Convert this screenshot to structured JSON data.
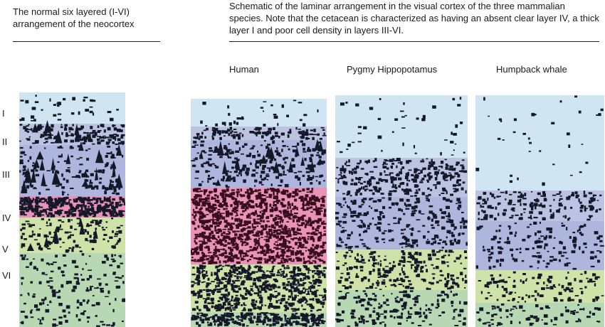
{
  "captions": {
    "left": "The normal six layered (I-VI) arrangement of the  neocortex",
    "right": "Schematic of the laminar arrangement in the visual cortex of the three mammalian species. Note that the cetacean is characterized as having an absent clear layer IV, a thick layer I and poor cell density in layers III-VI."
  },
  "species": [
    "Human",
    "Pygmy Hippopotamus",
    "Humpback whale"
  ],
  "layer_labels": [
    "I",
    "II",
    "III",
    "IV",
    "V",
    "VI"
  ],
  "layer_colors": {
    "I": "#cfe6f2",
    "II": "#bcc3e2",
    "III": "#aeb6dd",
    "IV": "#e993b8",
    "V": "#cfe3a8",
    "VI": "#b8d8b4",
    "cell": "#141828"
  }
}
